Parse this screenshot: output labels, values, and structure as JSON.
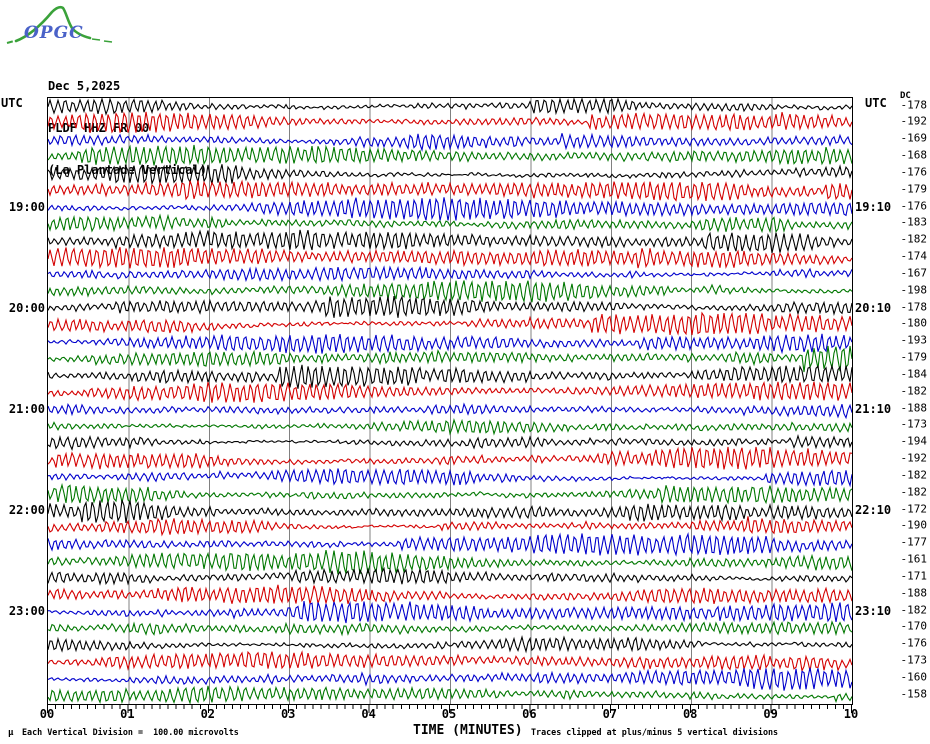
{
  "logo": {
    "name": "OPGC",
    "mountain_color": "#3aa23a",
    "text_color": "#4a62c8"
  },
  "header": {
    "date": "Dec 5,2025",
    "station_code": "PLDF HHZ FR 00",
    "station_name": "(La Plantade Vertical)"
  },
  "axes": {
    "left_axis_label": "UTC",
    "right_axis_label": "UTC",
    "dc_column_header": "DC",
    "x_axis_title": "TIME (MINUTES)"
  },
  "footer": {
    "mu_symbol": "μ",
    "left_note": "Each Vertical Division =  100.00 microvolts",
    "right_note": "Traces clipped at plus/minus 5 vertical divisions"
  },
  "chart_data": {
    "type": "line",
    "subtype": "helicorder_seismogram",
    "title": "PLDF HHZ FR 00 (La Plantade Vertical) — Dec 5,2025",
    "xlabel": "TIME (MINUTES)",
    "x_range": [
      0,
      10
    ],
    "x_ticks": [
      "00",
      "01",
      "02",
      "03",
      "04",
      "05",
      "06",
      "07",
      "08",
      "09",
      "10"
    ],
    "minor_ticks_per_division": 10,
    "minutes_per_row": 10,
    "rows": 36,
    "grid": "vertical-only",
    "grid_color": "#808080",
    "trace_colors": {
      "black": "#000000",
      "red": "#d40000",
      "blue": "#0000cc",
      "green": "#007700"
    },
    "color_cycle": [
      "black",
      "red",
      "blue",
      "green"
    ],
    "traces": [
      {
        "row": 1,
        "color": "black",
        "dc": -178,
        "left_label": "",
        "right_label": ""
      },
      {
        "row": 2,
        "color": "red",
        "dc": -192,
        "left_label": "",
        "right_label": ""
      },
      {
        "row": 3,
        "color": "blue",
        "dc": -169,
        "left_label": "",
        "right_label": ""
      },
      {
        "row": 4,
        "color": "green",
        "dc": -168,
        "left_label": "",
        "right_label": ""
      },
      {
        "row": 5,
        "color": "black",
        "dc": -176,
        "left_label": "",
        "right_label": ""
      },
      {
        "row": 6,
        "color": "red",
        "dc": -179,
        "left_label": "",
        "right_label": ""
      },
      {
        "row": 7,
        "color": "blue",
        "dc": -176,
        "left_label": "19:00",
        "right_label": "19:10"
      },
      {
        "row": 8,
        "color": "green",
        "dc": -183,
        "left_label": "",
        "right_label": ""
      },
      {
        "row": 9,
        "color": "black",
        "dc": -182,
        "left_label": "",
        "right_label": ""
      },
      {
        "row": 10,
        "color": "red",
        "dc": -174,
        "left_label": "",
        "right_label": ""
      },
      {
        "row": 11,
        "color": "blue",
        "dc": -167,
        "left_label": "",
        "right_label": ""
      },
      {
        "row": 12,
        "color": "green",
        "dc": -198,
        "left_label": "",
        "right_label": ""
      },
      {
        "row": 13,
        "color": "black",
        "dc": -178,
        "left_label": "20:00",
        "right_label": "20:10"
      },
      {
        "row": 14,
        "color": "red",
        "dc": -180,
        "left_label": "",
        "right_label": ""
      },
      {
        "row": 15,
        "color": "blue",
        "dc": -193,
        "left_label": "",
        "right_label": ""
      },
      {
        "row": 16,
        "color": "green",
        "dc": -179,
        "left_label": "",
        "right_label": ""
      },
      {
        "row": 17,
        "color": "black",
        "dc": -184,
        "left_label": "",
        "right_label": ""
      },
      {
        "row": 18,
        "color": "red",
        "dc": -182,
        "left_label": "",
        "right_label": ""
      },
      {
        "row": 19,
        "color": "blue",
        "dc": -188,
        "left_label": "21:00",
        "right_label": "21:10"
      },
      {
        "row": 20,
        "color": "green",
        "dc": -173,
        "left_label": "",
        "right_label": ""
      },
      {
        "row": 21,
        "color": "black",
        "dc": -194,
        "left_label": "",
        "right_label": ""
      },
      {
        "row": 22,
        "color": "red",
        "dc": -192,
        "left_label": "",
        "right_label": ""
      },
      {
        "row": 23,
        "color": "blue",
        "dc": -182,
        "left_label": "",
        "right_label": ""
      },
      {
        "row": 24,
        "color": "green",
        "dc": -182,
        "left_label": "",
        "right_label": ""
      },
      {
        "row": 25,
        "color": "black",
        "dc": -172,
        "left_label": "22:00",
        "right_label": "22:10"
      },
      {
        "row": 26,
        "color": "red",
        "dc": -190,
        "left_label": "",
        "right_label": ""
      },
      {
        "row": 27,
        "color": "blue",
        "dc": -177,
        "left_label": "",
        "right_label": ""
      },
      {
        "row": 28,
        "color": "green",
        "dc": -161,
        "left_label": "",
        "right_label": ""
      },
      {
        "row": 29,
        "color": "black",
        "dc": -171,
        "left_label": "",
        "right_label": ""
      },
      {
        "row": 30,
        "color": "red",
        "dc": -188,
        "left_label": "",
        "right_label": ""
      },
      {
        "row": 31,
        "color": "blue",
        "dc": -182,
        "left_label": "23:00",
        "right_label": "23:10"
      },
      {
        "row": 32,
        "color": "green",
        "dc": -170,
        "left_label": "",
        "right_label": ""
      },
      {
        "row": 33,
        "color": "black",
        "dc": -176,
        "left_label": "",
        "right_label": ""
      },
      {
        "row": 34,
        "color": "red",
        "dc": -173,
        "left_label": "",
        "right_label": ""
      },
      {
        "row": 35,
        "color": "blue",
        "dc": -160,
        "left_label": "",
        "right_label": ""
      },
      {
        "row": 36,
        "color": "green",
        "dc": -158,
        "left_label": "",
        "right_label": ""
      }
    ]
  }
}
